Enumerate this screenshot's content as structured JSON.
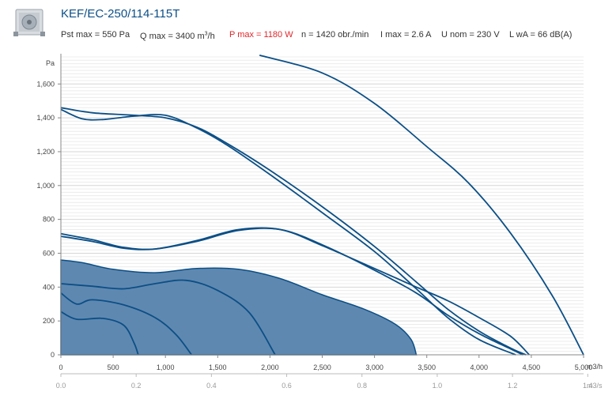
{
  "product": {
    "title": "KEF/EC-250/114-115T",
    "image_icon": "fan-box-icon"
  },
  "specs": {
    "pst_max": "Pst max = 550 Pa",
    "q_max_prefix": "Q max = 3400 m",
    "q_max_sup": "3",
    "q_max_suffix": "/h",
    "p_max": "P max = 1180 W",
    "n": "n = 1420 obr./min",
    "i_max": "I max = 2.6 A",
    "u_nom": "U nom = 230 V",
    "lwa": "L wA = 66 dB(A)"
  },
  "colors": {
    "curve": "#0b4f86",
    "fill": "#5f88b0",
    "highlight": "#e0262b",
    "title": "#0b4f86"
  },
  "chart_data": {
    "type": "line",
    "ylabel": "Pa",
    "xlabel": "m3/h",
    "x2label": "m3/s",
    "xlim": [
      0,
      5000
    ],
    "ylim": [
      0,
      1760
    ],
    "x_ticks": [
      "0",
      "500",
      "1,000",
      "1,500",
      "2,000",
      "2,500",
      "3,000",
      "3,500",
      "4,000",
      "4,500",
      "5,000"
    ],
    "x_tick_values": [
      0,
      500,
      1000,
      1500,
      2000,
      2500,
      3000,
      3500,
      4000,
      4500,
      5000
    ],
    "y_ticks": [
      "0",
      "200",
      "400",
      "600",
      "800",
      "1,000",
      "1,200",
      "1,400",
      "1,600"
    ],
    "y_tick_values": [
      0,
      200,
      400,
      600,
      800,
      1000,
      1200,
      1400,
      1600
    ],
    "x2_ticks": [
      "0.0",
      "0.2",
      "0.4",
      "0.6",
      "0.8",
      "1.0",
      "1.2",
      "1.4"
    ],
    "x2_tick_values": [
      0,
      0.2,
      0.4,
      0.6,
      0.8,
      1.0,
      1.2,
      1.4
    ],
    "grid": true,
    "operating_area": [
      [
        0,
        560
      ],
      [
        200,
        545
      ],
      [
        500,
        505
      ],
      [
        900,
        485
      ],
      [
        1300,
        510
      ],
      [
        1700,
        505
      ],
      [
        2100,
        450
      ],
      [
        2500,
        355
      ],
      [
        2900,
        270
      ],
      [
        3200,
        180
      ],
      [
        3350,
        90
      ],
      [
        3400,
        0
      ],
      [
        0,
        0
      ]
    ],
    "series": [
      {
        "values": [
          [
            0,
            1460
          ],
          [
            300,
            1430
          ],
          [
            700,
            1415
          ],
          [
            1000,
            1400
          ],
          [
            1300,
            1345
          ],
          [
            1600,
            1245
          ],
          [
            2000,
            1090
          ],
          [
            2500,
            875
          ],
          [
            3000,
            640
          ],
          [
            3400,
            430
          ],
          [
            3700,
            270
          ],
          [
            4000,
            140
          ],
          [
            4300,
            40
          ],
          [
            4450,
            0
          ]
        ]
      },
      {
        "values": [
          [
            0,
            1450
          ],
          [
            200,
            1395
          ],
          [
            400,
            1390
          ],
          [
            700,
            1410
          ],
          [
            1000,
            1415
          ],
          [
            1300,
            1340
          ],
          [
            1600,
            1235
          ],
          [
            2000,
            1065
          ],
          [
            2500,
            840
          ],
          [
            3000,
            610
          ],
          [
            3400,
            390
          ],
          [
            3700,
            220
          ],
          [
            4000,
            90
          ],
          [
            4350,
            0
          ]
        ]
      },
      {
        "values": [
          [
            0,
            700
          ],
          [
            300,
            670
          ],
          [
            600,
            630
          ],
          [
            900,
            625
          ],
          [
            1300,
            675
          ],
          [
            1700,
            740
          ],
          [
            2100,
            740
          ],
          [
            2500,
            645
          ],
          [
            3000,
            510
          ],
          [
            3400,
            400
          ],
          [
            3700,
            320
          ],
          [
            4000,
            220
          ],
          [
            4300,
            110
          ],
          [
            4480,
            0
          ]
        ]
      },
      {
        "values": [
          [
            0,
            715
          ],
          [
            300,
            680
          ],
          [
            600,
            635
          ],
          [
            900,
            625
          ],
          [
            1300,
            670
          ],
          [
            1700,
            735
          ],
          [
            2100,
            740
          ],
          [
            2500,
            650
          ],
          [
            3000,
            500
          ],
          [
            3400,
            365
          ],
          [
            3700,
            235
          ],
          [
            4000,
            125
          ],
          [
            4300,
            35
          ],
          [
            4420,
            0
          ]
        ]
      },
      {
        "values": [
          [
            1900,
            1770
          ],
          [
            2500,
            1665
          ],
          [
            3000,
            1485
          ],
          [
            3500,
            1230
          ],
          [
            3900,
            1015
          ],
          [
            4300,
            720
          ],
          [
            4700,
            350
          ],
          [
            5000,
            0
          ]
        ]
      },
      {
        "values": [
          [
            0,
            420
          ],
          [
            300,
            405
          ],
          [
            600,
            390
          ],
          [
            900,
            420
          ],
          [
            1200,
            440
          ],
          [
            1500,
            380
          ],
          [
            1800,
            250
          ],
          [
            2050,
            0
          ]
        ]
      },
      {
        "values": [
          [
            0,
            365
          ],
          [
            150,
            300
          ],
          [
            300,
            325
          ],
          [
            600,
            295
          ],
          [
            900,
            220
          ],
          [
            1100,
            120
          ],
          [
            1250,
            0
          ]
        ]
      },
      {
        "values": [
          [
            0,
            255
          ],
          [
            150,
            210
          ],
          [
            400,
            215
          ],
          [
            600,
            175
          ],
          [
            700,
            70
          ],
          [
            740,
            0
          ]
        ]
      }
    ]
  }
}
